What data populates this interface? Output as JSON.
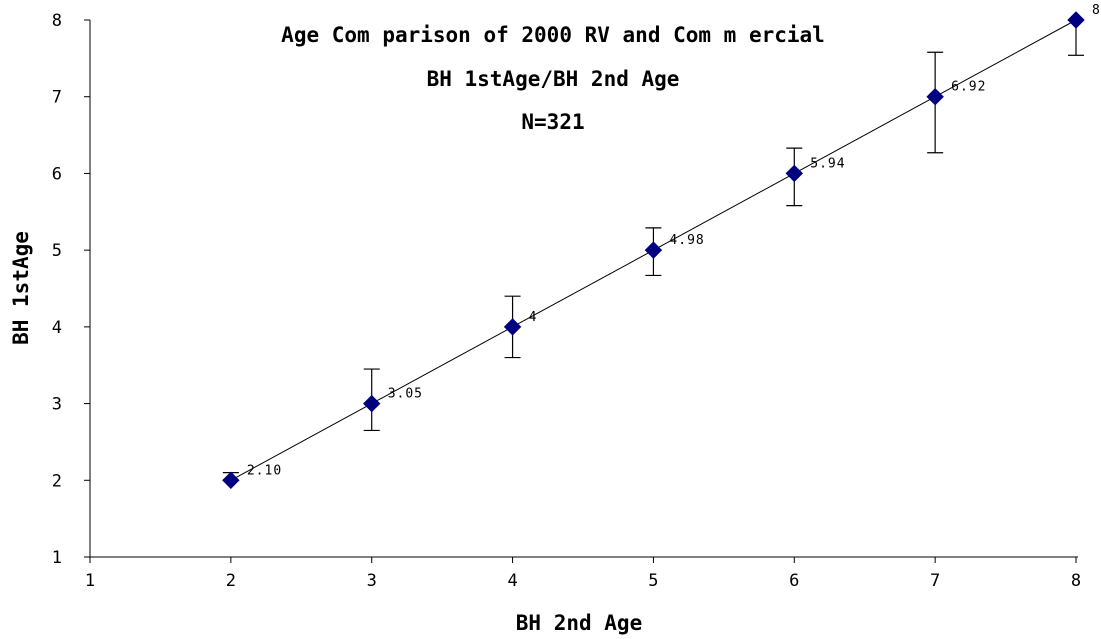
{
  "chart_data": {
    "type": "scatter",
    "title_lines": [
      "Age Com parison of 2000 RV and Com m ercial",
      "BH 1stAge/BH 2nd Age",
      "N=321"
    ],
    "xlabel": "BH 2nd Age",
    "ylabel": "BH 1stAge",
    "xlim": [
      1,
      8
    ],
    "ylim": [
      1,
      8
    ],
    "x_ticks": [
      1,
      2,
      3,
      4,
      5,
      6,
      7,
      8
    ],
    "y_ticks": [
      1,
      2,
      3,
      4,
      5,
      6,
      7,
      8
    ],
    "grid": false,
    "legend": "none",
    "marker": "diamond",
    "marker_color": "#000080",
    "line_color": "#000000",
    "points": [
      {
        "x": 2,
        "y": 2,
        "label": "2.10",
        "err_low": 2.0,
        "err_high": 2.1
      },
      {
        "x": 3,
        "y": 3,
        "label": "3.05",
        "err_low": 2.65,
        "err_high": 3.45
      },
      {
        "x": 4,
        "y": 4,
        "label": "4",
        "err_low": 3.6,
        "err_high": 4.4
      },
      {
        "x": 5,
        "y": 5,
        "label": "4.98",
        "err_low": 4.67,
        "err_high": 5.29
      },
      {
        "x": 6,
        "y": 6,
        "label": "5.94",
        "err_low": 5.58,
        "err_high": 6.33
      },
      {
        "x": 7,
        "y": 7,
        "label": "6.92",
        "err_low": 6.27,
        "err_high": 7.58
      },
      {
        "x": 8,
        "y": 8,
        "label": "8",
        "err_low": 7.54,
        "err_high": 8.0
      }
    ]
  }
}
